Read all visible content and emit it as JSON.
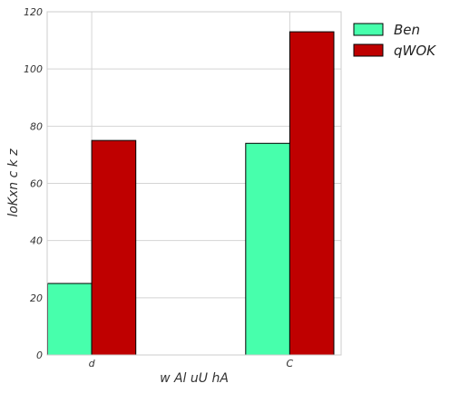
{
  "chart_data": {
    "type": "bar",
    "title": "",
    "xlabel": "w Al uU  hA",
    "ylabel": "loKxn c  k z",
    "categories": [
      "d",
      "C"
    ],
    "series": [
      {
        "name": "Ben",
        "values": [
          25,
          74
        ],
        "color": "#47ffac"
      },
      {
        "name": "qWOK",
        "values": [
          75,
          113
        ],
        "color": "#bf0000"
      }
    ],
    "ylim": [
      0,
      120
    ],
    "yticks": [
      0,
      20,
      40,
      60,
      80,
      100,
      120
    ],
    "grid": true,
    "legend_position": "outside-top-right"
  }
}
